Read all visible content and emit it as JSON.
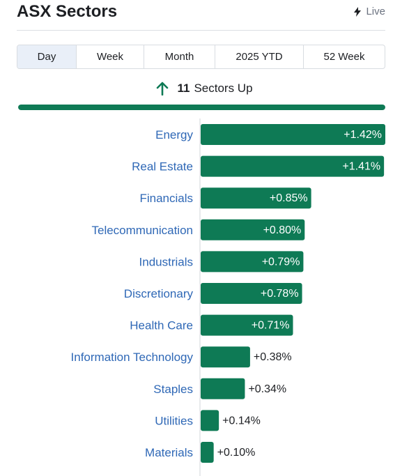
{
  "header": {
    "title": "ASX Sectors",
    "live_label": "Live"
  },
  "tabs": [
    "Day",
    "Week",
    "Month",
    "2025 YTD",
    "52 Week"
  ],
  "active_tab": "Day",
  "summary": {
    "count": "11",
    "text": "Sectors Up",
    "up_fraction": 1.0
  },
  "colors": {
    "bar": "#0e7a55",
    "category_text": "#2f68b6",
    "value_inside": "#ffffff",
    "value_outside": "#1d1f23",
    "accent": "#0e7a55"
  },
  "icons": {
    "live": "bolt-icon",
    "summary": "arrow-up-icon"
  },
  "chart_data": {
    "type": "bar",
    "orientation": "horizontal",
    "categories": [
      "Energy",
      "Real Estate",
      "Financials",
      "Telecommunication",
      "Industrials",
      "Discretionary",
      "Health Care",
      "Information Technology",
      "Staples",
      "Utilities",
      "Materials"
    ],
    "values": [
      1.42,
      1.41,
      0.85,
      0.8,
      0.79,
      0.78,
      0.71,
      0.38,
      0.34,
      0.14,
      0.1
    ],
    "value_labels": [
      "+1.42%",
      "+1.41%",
      "+0.85%",
      "+0.80%",
      "+0.79%",
      "+0.78%",
      "+0.71%",
      "+0.38%",
      "+0.34%",
      "+0.14%",
      "+0.10%"
    ],
    "title": "",
    "xlabel": "",
    "ylabel": "",
    "xlim": [
      0,
      1.42
    ],
    "grid": false,
    "legend": "none"
  }
}
